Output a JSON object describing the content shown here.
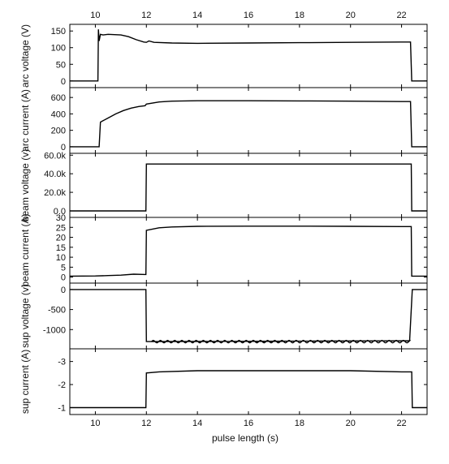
{
  "chart_data": {
    "type": "line",
    "xlabel": "pulse length (s)",
    "xlim": [
      9,
      23
    ],
    "xticks": [
      10,
      12,
      14,
      16,
      18,
      20,
      22
    ],
    "xtick_labels": [
      "10",
      "12",
      "14",
      "16",
      "18",
      "20",
      "22"
    ],
    "grid": false,
    "panels": [
      {
        "ylabel": "arc voltage (V)",
        "ylim": [
          -20,
          170
        ],
        "yticks": [
          0,
          50,
          100,
          150
        ],
        "ytick_labels": [
          "0",
          "50",
          "100",
          "150"
        ],
        "series": [
          {
            "x": [
              9.0,
              10.1,
              10.12,
              10.15,
              10.2,
              10.3,
              10.5,
              11.0,
              11.3,
              11.6,
              11.9,
              12.0,
              12.1,
              12.3,
              13,
              14,
              16,
              18,
              20,
              22,
              22.35,
              22.4,
              23.0
            ],
            "y": [
              0,
              0,
              155,
              120,
              140,
              138,
              140,
              138,
              133,
              124,
              117,
              116,
              120,
              116,
              114,
              113,
              114,
              115,
              116,
              117,
              117,
              0,
              0
            ]
          }
        ]
      },
      {
        "ylabel": "arc current (A)",
        "ylim": [
          -80,
          720
        ],
        "yticks": [
          0,
          200,
          400,
          600
        ],
        "ytick_labels": [
          "0",
          "200",
          "400",
          "600"
        ],
        "series": [
          {
            "x": [
              9.0,
              10.15,
              10.2,
              10.5,
              10.8,
              11.1,
              11.4,
              11.7,
              11.95,
              12.0,
              12.5,
              13,
              14,
              16,
              18,
              20,
              22,
              22.35,
              22.4,
              23.0
            ],
            "y": [
              0,
              0,
              300,
              350,
              400,
              440,
              470,
              490,
              500,
              520,
              545,
              555,
              560,
              560,
              558,
              555,
              550,
              550,
              0,
              0
            ]
          }
        ]
      },
      {
        "ylabel": "beam voltage (v)",
        "ylim": [
          -7000,
          62000
        ],
        "yticks": [
          0,
          20000,
          40000,
          60000
        ],
        "ytick_labels": [
          "0.0",
          "20.0k",
          "40.0k",
          "60.0k"
        ],
        "series": [
          {
            "x": [
              9.0,
              11.98,
              12.0,
              22.38,
              22.4,
              23.0
            ],
            "y": [
              0,
              0,
              50500,
              50500,
              0,
              0
            ]
          }
        ]
      },
      {
        "ylabel": "beam current (A)",
        "ylim": [
          -3,
          30
        ],
        "yticks": [
          0,
          5,
          10,
          15,
          20,
          25,
          30
        ],
        "ytick_labels": [
          "0",
          "5",
          "10",
          "15",
          "20",
          "25",
          "30"
        ],
        "series": [
          {
            "x": [
              9.0,
              10.0,
              10.5,
              11.0,
              11.5,
              11.98,
              12.0,
              12.5,
              13,
              14,
              16,
              18,
              20,
              22,
              22.38,
              22.4,
              23.0
            ],
            "y": [
              0.5,
              0.6,
              0.8,
              1.0,
              1.5,
              1.3,
              23.5,
              24.8,
              25.2,
              25.5,
              25.6,
              25.6,
              25.5,
              25.4,
              25.4,
              0.5,
              0.5
            ]
          }
        ]
      },
      {
        "ylabel": "sup voltage (v)",
        "ylim": [
          -1480,
          160
        ],
        "yticks": [
          0,
          -500,
          -1000
        ],
        "ytick_labels": [
          "0",
          "-500",
          "-1000"
        ],
        "series": [
          {
            "x": [
              9.0,
              11.98,
              12.0,
              12.2,
              22.4,
              22.42,
              23.0
            ],
            "y": [
              0,
              0,
              -1300,
              -1300,
              -1300,
              0,
              0
            ],
            "ripple": {
              "from": 12.2,
              "to": 22.35,
              "amplitude": 30,
              "period": 0.28
            }
          }
        ]
      },
      {
        "ylabel": "sup current (A)",
        "ylim": [
          -0.7,
          -3.55
        ],
        "yticks": [
          -1,
          -2,
          -3
        ],
        "ytick_labels": [
          "-1",
          "-2",
          "-3"
        ],
        "series": [
          {
            "x": [
              9.0,
              11.98,
              12.0,
              12.5,
              14,
              16,
              18,
              20,
              22,
              22.4,
              22.42,
              23.0
            ],
            "y": [
              -1.0,
              -1.0,
              -2.5,
              -2.55,
              -2.6,
              -2.6,
              -2.6,
              -2.6,
              -2.55,
              -2.55,
              -1.0,
              -1.0
            ]
          }
        ]
      }
    ]
  }
}
